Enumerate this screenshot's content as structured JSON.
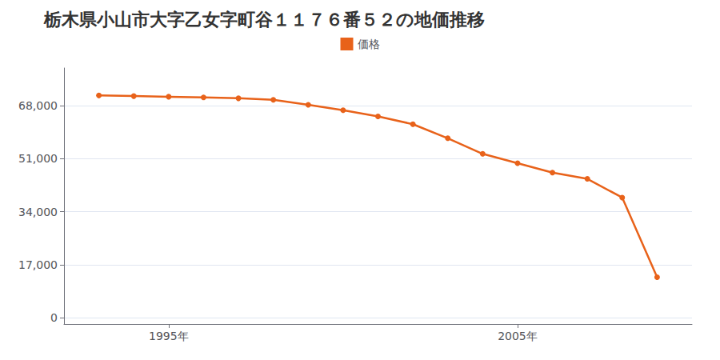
{
  "chart_data": {
    "type": "line",
    "title": "栃木県小山市大字乙女字町谷１１７６番５２の地価推移",
    "x": [
      1993,
      1994,
      1995,
      1996,
      1997,
      1998,
      1999,
      2000,
      2001,
      2002,
      2003,
      2004,
      2005,
      2006,
      2007,
      2008,
      2009
    ],
    "series": [
      {
        "name": "価格",
        "color": "#E8621A",
        "marker": "circle",
        "values": [
          71200,
          71000,
          70800,
          70600,
          70300,
          69800,
          68200,
          66500,
          64500,
          62000,
          57500,
          52500,
          49500,
          46500,
          44500,
          38500,
          13000
        ]
      }
    ],
    "xlim": [
      1992,
      2010
    ],
    "xticks": [
      {
        "value": 1995,
        "label": "1995年"
      },
      {
        "value": 2005,
        "label": "2005年"
      }
    ],
    "ylim": [
      -2000,
      80000
    ],
    "yticks": [
      0,
      {
        "value": 17000,
        "label": "17,000"
      },
      {
        "value": 34000,
        "label": "34,000"
      },
      {
        "value": 51000,
        "label": "51,000"
      },
      {
        "value": 68000,
        "label": "68,000"
      }
    ],
    "grid": "y",
    "legend": "upper center"
  }
}
